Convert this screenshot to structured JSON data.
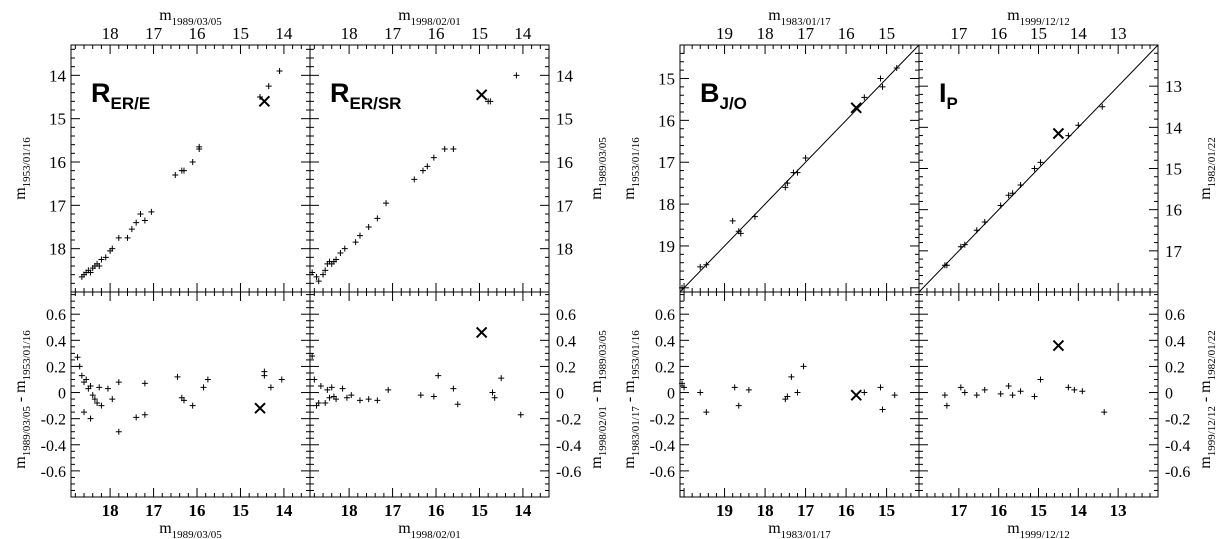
{
  "chart_data": [
    {
      "type": "scatter",
      "panel": "R_ER/E",
      "title_main": "R",
      "title_sub": "ER/E",
      "top_axis": {
        "label": "m",
        "label_sub": "1989/03/05",
        "reversed": true,
        "xlim": [
          18.9,
          13.4
        ],
        "ticks": [
          18,
          17,
          16,
          15,
          14
        ]
      },
      "bottom_axis": {
        "label": "m",
        "label_sub": "1989/03/05",
        "reversed": true,
        "xlim": [
          18.9,
          13.4
        ],
        "ticks": [
          18,
          17,
          16,
          15,
          14
        ]
      },
      "upper_y": {
        "label": "m",
        "label_sub": "1953/01/16",
        "reversed": true,
        "ylim": [
          13.3,
          19.0
        ],
        "ticks": [
          14,
          15,
          16,
          17,
          18
        ]
      },
      "lower_y": {
        "label": "m",
        "label_sub": "1989/03/05",
        "label_suffix": " - m",
        "label_sub2": "1953/01/16",
        "ylim": [
          -0.8,
          0.77
        ],
        "ticks": [
          0.6,
          0.4,
          0.2,
          0,
          -0.2,
          -0.4,
          -0.6
        ]
      },
      "upper_points": [
        [
          18.65,
          18.65
        ],
        [
          18.6,
          18.6
        ],
        [
          18.55,
          18.55
        ],
        [
          18.5,
          18.5
        ],
        [
          18.45,
          18.55
        ],
        [
          18.4,
          18.45
        ],
        [
          18.35,
          18.4
        ],
        [
          18.3,
          18.35
        ],
        [
          18.25,
          18.4
        ],
        [
          18.2,
          18.25
        ],
        [
          18.1,
          18.2
        ],
        [
          18.0,
          18.05
        ],
        [
          17.95,
          18.0
        ],
        [
          17.8,
          17.75
        ],
        [
          17.6,
          17.75
        ],
        [
          17.5,
          17.55
        ],
        [
          17.4,
          17.4
        ],
        [
          17.3,
          17.2
        ],
        [
          17.2,
          17.35
        ],
        [
          17.05,
          17.15
        ],
        [
          16.5,
          16.3
        ],
        [
          16.35,
          16.2
        ],
        [
          16.3,
          16.2
        ],
        [
          16.1,
          16.0
        ],
        [
          15.95,
          15.7
        ],
        [
          15.95,
          15.65
        ],
        [
          14.55,
          14.5
        ],
        [
          14.35,
          14.25
        ],
        [
          14.1,
          13.9
        ]
      ],
      "upper_cross": [
        14.45,
        14.6
      ],
      "lower_points": [
        [
          18.75,
          0.27
        ],
        [
          18.7,
          0.2
        ],
        [
          18.65,
          0.13
        ],
        [
          18.6,
          0.08
        ],
        [
          18.6,
          -0.15
        ],
        [
          18.55,
          0.1
        ],
        [
          18.5,
          0.03
        ],
        [
          18.45,
          -0.2
        ],
        [
          18.45,
          0.05
        ],
        [
          18.4,
          -0.02
        ],
        [
          18.35,
          -0.05
        ],
        [
          18.3,
          -0.08
        ],
        [
          18.25,
          0.04
        ],
        [
          18.2,
          -0.1
        ],
        [
          18.05,
          0.03
        ],
        [
          17.95,
          -0.05
        ],
        [
          17.8,
          -0.3
        ],
        [
          17.8,
          0.08
        ],
        [
          17.4,
          -0.19
        ],
        [
          17.2,
          -0.17
        ],
        [
          17.2,
          0.07
        ],
        [
          16.45,
          0.12
        ],
        [
          16.35,
          -0.04
        ],
        [
          16.3,
          -0.06
        ],
        [
          16.1,
          -0.1
        ],
        [
          15.85,
          0.04
        ],
        [
          15.75,
          0.1
        ],
        [
          14.45,
          0.16
        ],
        [
          14.45,
          0.13
        ],
        [
          14.3,
          0.04
        ],
        [
          14.05,
          0.1
        ]
      ],
      "lower_cross": [
        14.55,
        -0.12
      ]
    },
    {
      "type": "scatter",
      "panel": "R_ER/SR",
      "title_main": "R",
      "title_sub": "ER/SR",
      "top_axis": {
        "label": "m",
        "label_sub": "1998/02/01",
        "reversed": true,
        "xlim": [
          18.9,
          13.4
        ],
        "ticks": [
          18,
          17,
          16,
          15,
          14
        ]
      },
      "bottom_axis": {
        "label": "m",
        "label_sub": "1998/02/01",
        "reversed": true,
        "xlim": [
          18.9,
          13.4
        ],
        "ticks": [
          18,
          17,
          16,
          15,
          14
        ]
      },
      "upper_y": {
        "label": "m",
        "label_sub": "1989/03/05",
        "reversed": true,
        "ylim": [
          13.3,
          19.0
        ],
        "ticks": [
          14,
          15,
          16,
          17,
          18
        ]
      },
      "lower_y": {
        "label": "m",
        "label_sub": "1998/02/01",
        "label_suffix": " - m",
        "label_sub2": "1989/03/05",
        "ylim": [
          -0.8,
          0.77
        ],
        "ticks": [
          0.6,
          0.4,
          0.2,
          0,
          -0.2,
          -0.4,
          -0.6
        ]
      },
      "upper_points": [
        [
          18.85,
          18.55
        ],
        [
          18.75,
          18.65
        ],
        [
          18.7,
          18.75
        ],
        [
          18.6,
          18.6
        ],
        [
          18.55,
          18.5
        ],
        [
          18.5,
          18.35
        ],
        [
          18.45,
          18.3
        ],
        [
          18.4,
          18.35
        ],
        [
          18.35,
          18.3
        ],
        [
          18.3,
          18.25
        ],
        [
          18.2,
          18.1
        ],
        [
          18.1,
          18.0
        ],
        [
          17.85,
          17.85
        ],
        [
          17.75,
          17.7
        ],
        [
          17.55,
          17.5
        ],
        [
          17.35,
          17.3
        ],
        [
          17.15,
          16.95
        ],
        [
          16.5,
          16.4
        ],
        [
          16.3,
          16.2
        ],
        [
          16.2,
          16.1
        ],
        [
          16.05,
          15.9
        ],
        [
          15.8,
          15.7
        ],
        [
          15.6,
          15.7
        ],
        [
          14.8,
          14.6
        ],
        [
          14.75,
          14.6
        ],
        [
          14.15,
          14.0
        ]
      ],
      "upper_cross": [
        14.95,
        14.45
      ],
      "lower_points": [
        [
          18.85,
          0.28
        ],
        [
          18.8,
          0.1
        ],
        [
          18.75,
          -0.1
        ],
        [
          18.7,
          -0.08
        ],
        [
          18.65,
          0.05
        ],
        [
          18.55,
          -0.08
        ],
        [
          18.5,
          0.02
        ],
        [
          18.45,
          -0.04
        ],
        [
          18.4,
          0.04
        ],
        [
          18.35,
          -0.03
        ],
        [
          18.3,
          -0.05
        ],
        [
          18.15,
          0.03
        ],
        [
          18.05,
          -0.04
        ],
        [
          17.95,
          -0.02
        ],
        [
          17.75,
          -0.06
        ],
        [
          17.55,
          -0.05
        ],
        [
          17.35,
          -0.06
        ],
        [
          17.1,
          0.02
        ],
        [
          16.35,
          -0.02
        ],
        [
          16.05,
          -0.03
        ],
        [
          15.95,
          0.13
        ],
        [
          15.6,
          0.03
        ],
        [
          15.5,
          -0.09
        ],
        [
          14.7,
          0.0
        ],
        [
          14.65,
          -0.04
        ],
        [
          14.5,
          0.11
        ],
        [
          14.05,
          -0.17
        ]
      ],
      "lower_cross": [
        14.95,
        0.46
      ]
    },
    {
      "type": "scatter",
      "panel": "B_J/O",
      "title_main": "B",
      "title_sub": "J/O",
      "diagonal_line": true,
      "top_axis": {
        "label": "m",
        "label_sub": "1983/01/17",
        "reversed": true,
        "xlim": [
          20.1,
          14.2
        ],
        "ticks": [
          19,
          18,
          17,
          16,
          15
        ]
      },
      "bottom_axis": {
        "label": "m",
        "label_sub": "1983/01/17",
        "reversed": true,
        "xlim": [
          20.1,
          14.2
        ],
        "ticks": [
          19,
          18,
          17,
          16,
          15
        ]
      },
      "upper_y": {
        "label": "m",
        "label_sub": "1953/01/16",
        "reversed": true,
        "ylim": [
          14.2,
          20.1
        ],
        "ticks": [
          15,
          16,
          17,
          18,
          19
        ]
      },
      "lower_y": {
        "label": "m",
        "label_sub": "1983/01/17",
        "label_suffix": " - m",
        "label_sub2": "1953/01/16",
        "ylim": [
          -0.8,
          0.77
        ],
        "ticks": [
          0.6,
          0.4,
          0.2,
          0,
          -0.2,
          -0.4,
          -0.6
        ]
      },
      "upper_points": [
        [
          20.05,
          20.0
        ],
        [
          19.6,
          19.5
        ],
        [
          19.45,
          19.45
        ],
        [
          18.8,
          18.4
        ],
        [
          18.65,
          18.65
        ],
        [
          18.6,
          18.7
        ],
        [
          18.25,
          18.3
        ],
        [
          17.5,
          17.6
        ],
        [
          17.45,
          17.5
        ],
        [
          17.3,
          17.25
        ],
        [
          17.2,
          17.25
        ],
        [
          17.0,
          16.9
        ],
        [
          15.55,
          15.45
        ],
        [
          15.15,
          15.0
        ],
        [
          15.1,
          15.2
        ],
        [
          14.75,
          14.75
        ]
      ],
      "upper_cross": [
        15.75,
        15.7
      ],
      "lower_points": [
        [
          20.05,
          0.07
        ],
        [
          20.0,
          0.04
        ],
        [
          19.6,
          0.0
        ],
        [
          19.45,
          -0.15
        ],
        [
          18.75,
          0.04
        ],
        [
          18.65,
          -0.1
        ],
        [
          18.4,
          0.02
        ],
        [
          17.5,
          -0.05
        ],
        [
          17.45,
          -0.03
        ],
        [
          17.35,
          0.12
        ],
        [
          17.2,
          0.0
        ],
        [
          17.05,
          0.2
        ],
        [
          15.55,
          0.0
        ],
        [
          15.15,
          0.04
        ],
        [
          15.1,
          -0.13
        ],
        [
          14.8,
          -0.02
        ]
      ],
      "lower_cross": [
        15.75,
        -0.02
      ]
    },
    {
      "type": "scatter",
      "panel": "I_P",
      "title_main": "I",
      "title_sub": "P",
      "diagonal_line": true,
      "top_axis": {
        "label": "m",
        "label_sub": "1999/12/12",
        "reversed": true,
        "xlim": [
          18.0,
          12.0
        ],
        "ticks": [
          17,
          16,
          15,
          14,
          13
        ]
      },
      "bottom_axis": {
        "label": "m",
        "label_sub": "1999/12/12",
        "reversed": true,
        "xlim": [
          18.0,
          12.0
        ],
        "ticks": [
          17,
          16,
          15,
          14,
          13
        ]
      },
      "upper_y": {
        "label": "m",
        "label_sub": "1982/01/22",
        "reversed": true,
        "ylim": [
          12.0,
          18.0
        ],
        "ticks": [
          13,
          14,
          15,
          16,
          17
        ]
      },
      "lower_y": {
        "label": "m",
        "label_sub": "1999/12/12",
        "label_suffix": " - m",
        "label_sub2": "1982/01/22",
        "ylim": [
          -0.8,
          0.77
        ],
        "ticks": [
          0.6,
          0.4,
          0.2,
          0,
          -0.2,
          -0.4,
          -0.6
        ]
      },
      "upper_points": [
        [
          17.35,
          17.35
        ],
        [
          17.3,
          17.35
        ],
        [
          16.95,
          16.9
        ],
        [
          16.85,
          16.85
        ],
        [
          16.55,
          16.5
        ],
        [
          16.35,
          16.3
        ],
        [
          15.95,
          15.9
        ],
        [
          15.75,
          15.65
        ],
        [
          15.65,
          15.6
        ],
        [
          15.45,
          15.4
        ],
        [
          15.1,
          15.0
        ],
        [
          14.95,
          14.85
        ],
        [
          14.25,
          14.2
        ],
        [
          14.0,
          13.95
        ],
        [
          13.4,
          13.5
        ]
      ],
      "upper_cross": [
        14.5,
        14.15
      ],
      "lower_points": [
        [
          17.35,
          -0.02
        ],
        [
          17.3,
          -0.1
        ],
        [
          16.95,
          0.04
        ],
        [
          16.85,
          0.0
        ],
        [
          16.55,
          -0.02
        ],
        [
          16.35,
          0.02
        ],
        [
          15.95,
          -0.01
        ],
        [
          15.75,
          0.05
        ],
        [
          15.65,
          -0.02
        ],
        [
          15.45,
          0.01
        ],
        [
          15.1,
          -0.03
        ],
        [
          14.95,
          0.1
        ],
        [
          14.25,
          0.04
        ],
        [
          14.1,
          0.02
        ],
        [
          13.9,
          0.01
        ],
        [
          13.35,
          -0.15
        ]
      ],
      "lower_cross": [
        14.5,
        0.36
      ]
    }
  ]
}
